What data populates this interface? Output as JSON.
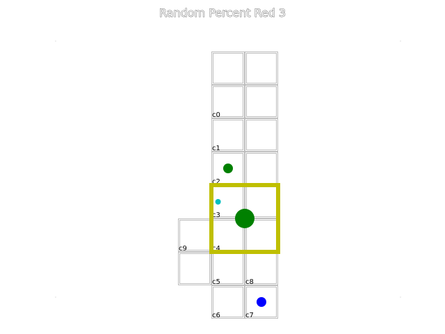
{
  "title": "Random Percent Red 3",
  "colors": {
    "grid": "#bdbdbd",
    "selection": "#bfbf00",
    "green": "#008000",
    "cyan": "#00bfbf",
    "blue": "#0000ff"
  },
  "cells": [
    {
      "label": "c0",
      "col": 1,
      "row": 1
    },
    {
      "label": "c1",
      "col": 1,
      "row": 2
    },
    {
      "label": "c2",
      "col": 1,
      "row": 3
    },
    {
      "label": "c3",
      "col": 1,
      "row": 4
    },
    {
      "label": "c4",
      "col": 1,
      "row": 5
    },
    {
      "label": "c5",
      "col": 1,
      "row": 6
    },
    {
      "label": "c6",
      "col": 1,
      "row": 7
    },
    {
      "label": "c7",
      "col": 2,
      "row": 7
    },
    {
      "label": "c8",
      "col": 2,
      "row": 6
    },
    {
      "label": "c9",
      "col": 0,
      "row": 5
    }
  ],
  "unlabeled_cells": [
    {
      "col": 1,
      "row": 0
    },
    {
      "col": 2,
      "row": 0
    },
    {
      "col": 2,
      "row": 1
    },
    {
      "col": 2,
      "row": 2
    },
    {
      "col": 2,
      "row": 3
    },
    {
      "col": 2,
      "row": 4
    },
    {
      "col": 2,
      "row": 5
    },
    {
      "col": 0,
      "row": 6
    }
  ],
  "selection": {
    "col": 1,
    "row": 4,
    "cols": 2,
    "rows": 2
  },
  "pieces": [
    {
      "name": "green-dot-small",
      "color": "green",
      "col": 1.5,
      "row": 3.5,
      "size": "medium"
    },
    {
      "name": "cyan-dot",
      "color": "cyan",
      "col": 1.2,
      "row": 4.5,
      "size": "small"
    },
    {
      "name": "green-dot-large",
      "color": "green",
      "col": 2.0,
      "row": 5.0,
      "size": "large"
    },
    {
      "name": "blue-dot",
      "color": "blue",
      "col": 2.5,
      "row": 7.5,
      "size": "medium"
    }
  ]
}
